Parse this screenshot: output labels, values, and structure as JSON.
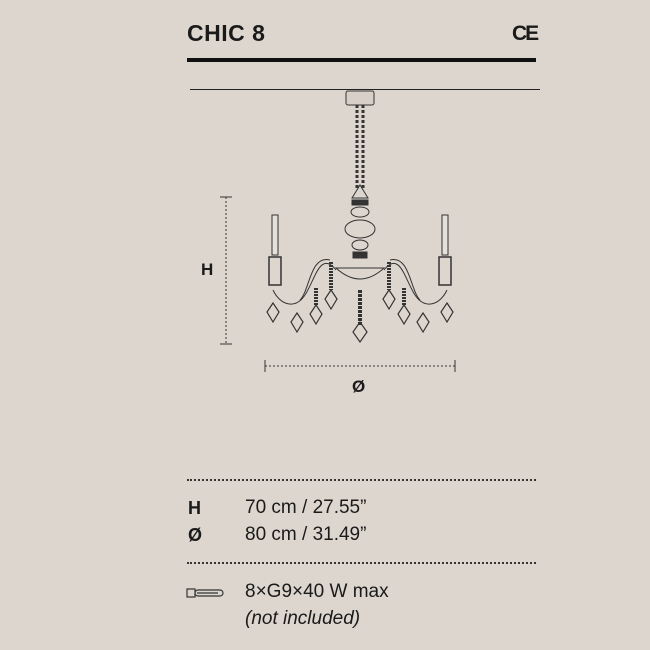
{
  "product": {
    "title": "CHIC 8",
    "certification": "CE"
  },
  "drawing": {
    "height_label": "H",
    "diameter_label": "Ø"
  },
  "specs": [
    {
      "label": "H",
      "value": "70 cm / 27.55”"
    },
    {
      "label": "Ø",
      "value": "80 cm / 31.49”"
    }
  ],
  "bulb": {
    "icon": "g9-bulb-icon",
    "text": "8×G9×40 W max",
    "note": "(not included)"
  }
}
